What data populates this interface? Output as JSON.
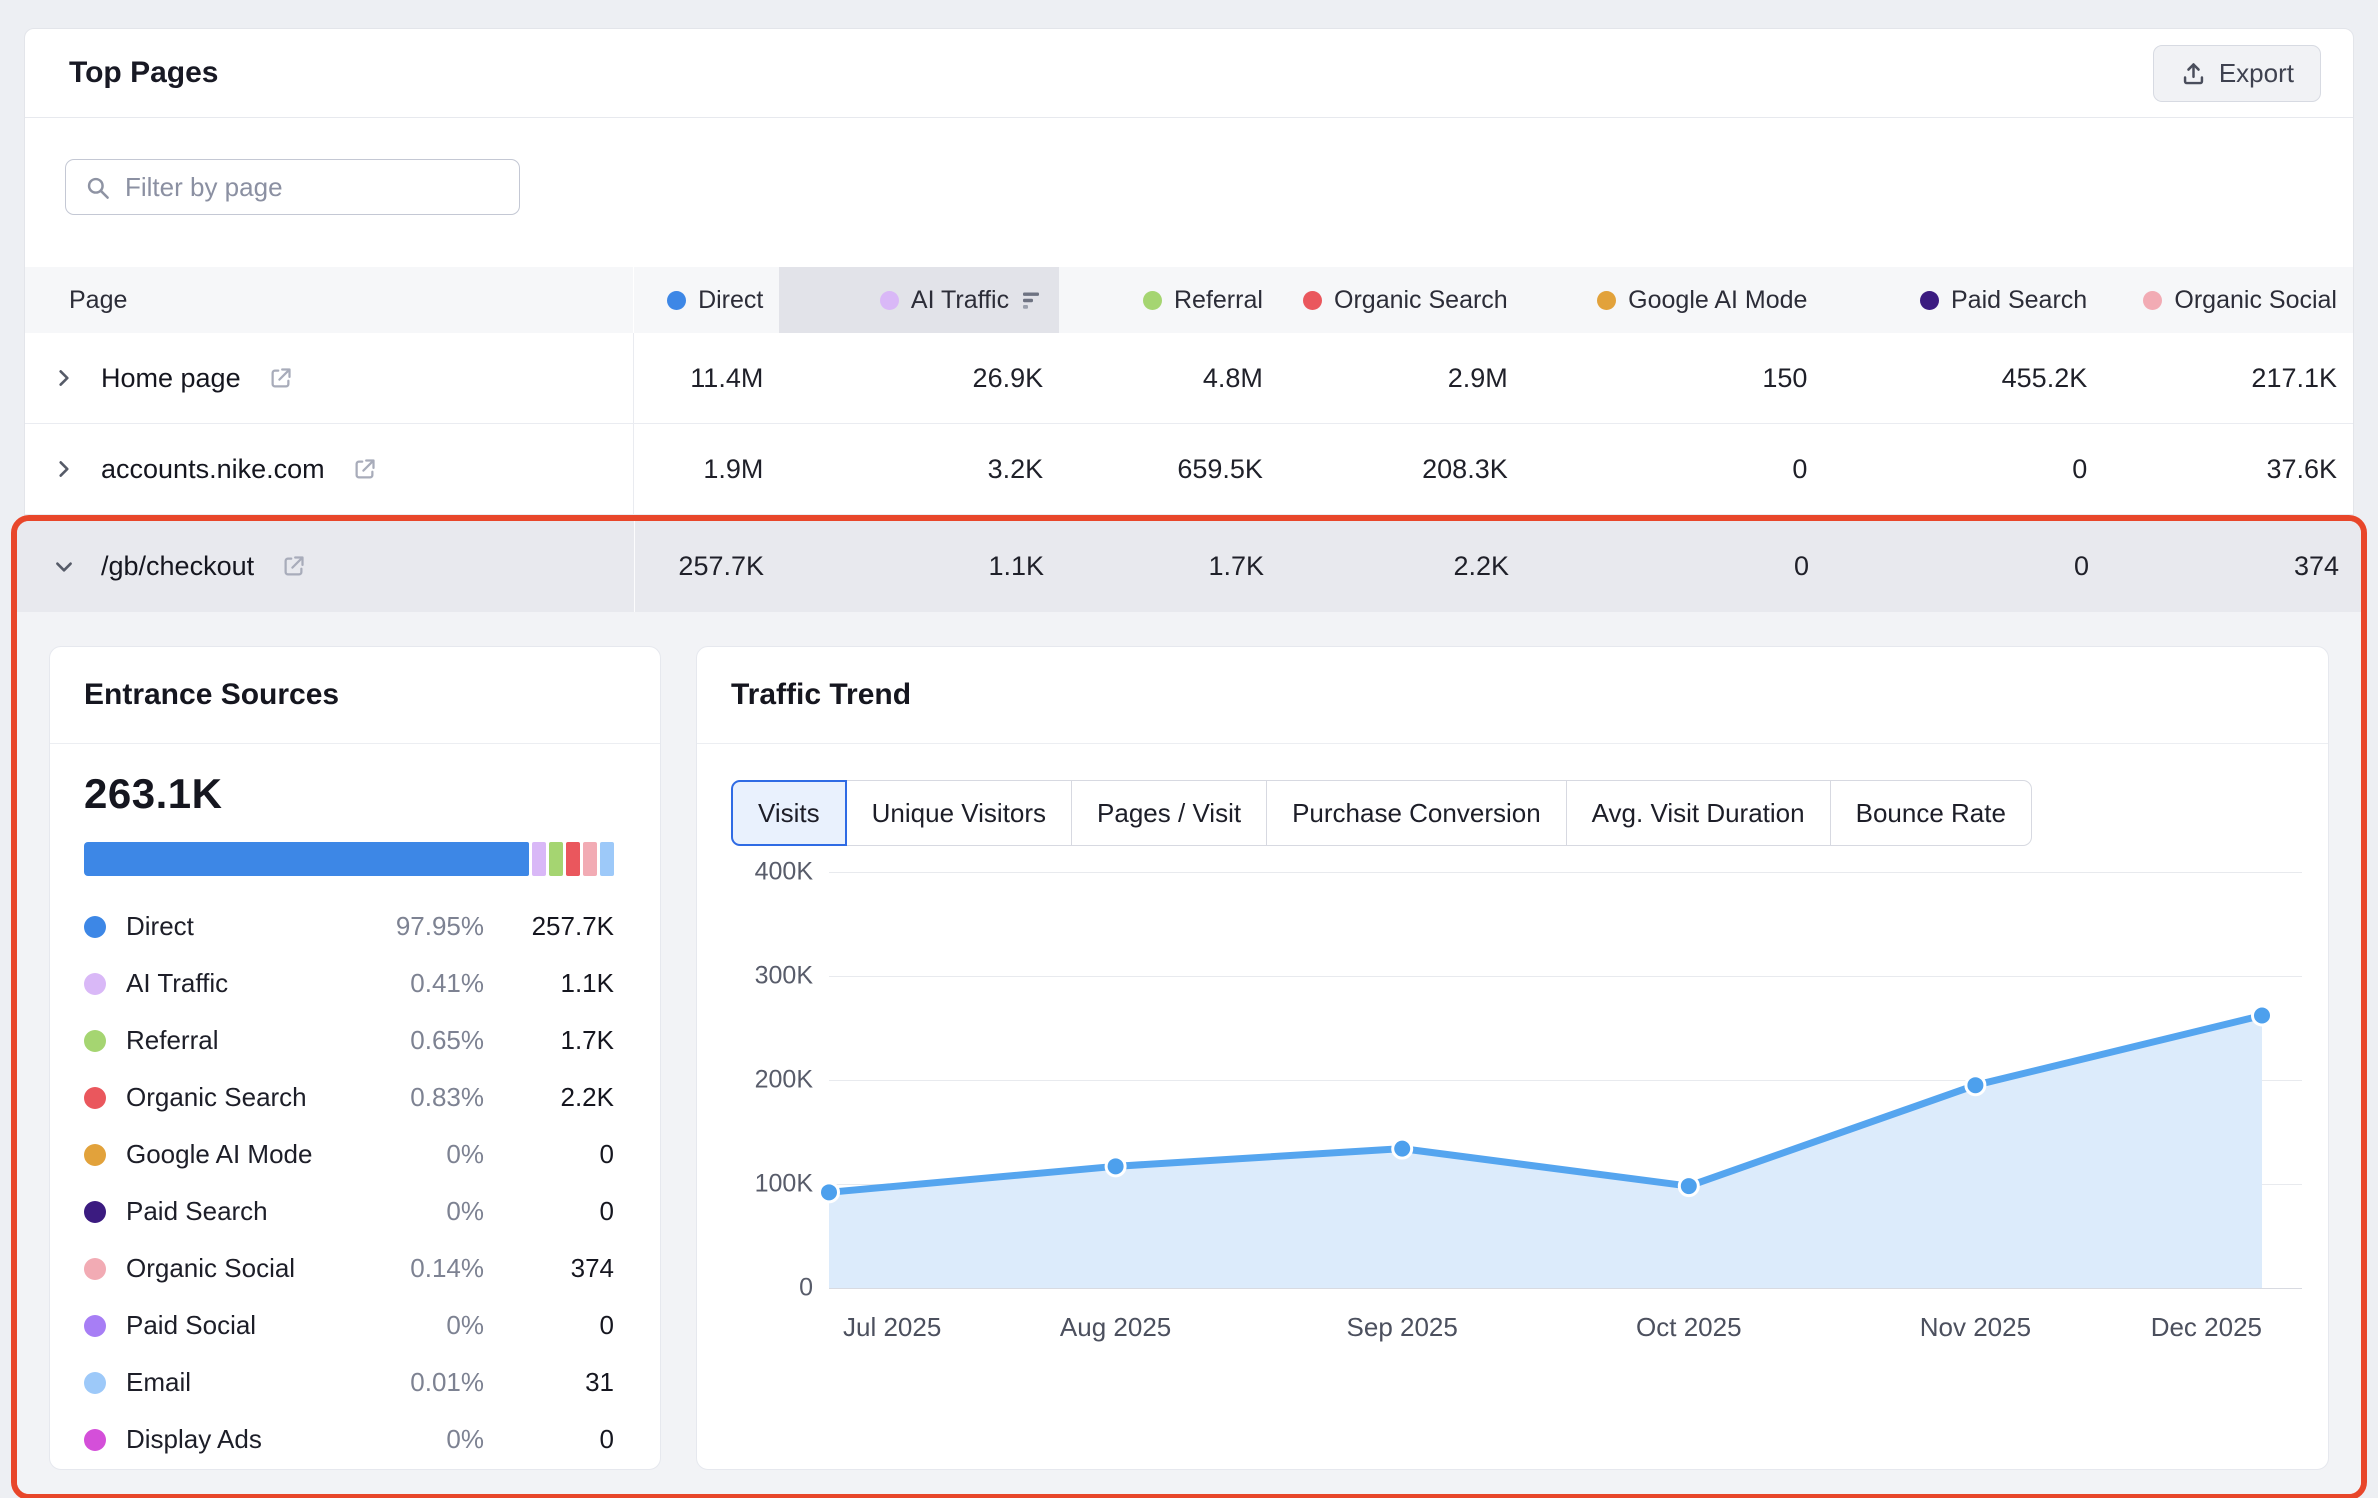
{
  "header": {
    "title": "Top Pages",
    "export_label": "Export"
  },
  "filter": {
    "placeholder": "Filter by page"
  },
  "table": {
    "page_column_label": "Page",
    "columns": [
      {
        "label": "Direct",
        "color": "#3d87e6",
        "sorted": false
      },
      {
        "label": "AI Traffic",
        "color": "#d9b8f7",
        "sorted": true
      },
      {
        "label": "Referral",
        "color": "#a5d571",
        "sorted": false
      },
      {
        "label": "Organic Search",
        "color": "#ea575d",
        "sorted": false
      },
      {
        "label": "Google AI Mode",
        "color": "#e2a23b",
        "sorted": false
      },
      {
        "label": "Paid Search",
        "color": "#3b1b80",
        "sorted": false
      },
      {
        "label": "Organic Social",
        "color": "#f2abb4",
        "sorted": false
      }
    ],
    "rows": [
      {
        "page": "Home page",
        "expanded": false,
        "values": [
          "11.4M",
          "26.9K",
          "4.8M",
          "2.9M",
          "150",
          "455.2K",
          "217.1K"
        ]
      },
      {
        "page": "accounts.nike.com",
        "expanded": false,
        "values": [
          "1.9M",
          "3.2K",
          "659.5K",
          "208.3K",
          "0",
          "0",
          "37.6K"
        ]
      },
      {
        "page": "/gb/checkout",
        "expanded": true,
        "values": [
          "257.7K",
          "1.1K",
          "1.7K",
          "2.2K",
          "0",
          "0",
          "374"
        ]
      }
    ]
  },
  "entrance_sources": {
    "title": "Entrance Sources",
    "total": "263.1K",
    "bar_segments": [
      {
        "label": "Direct",
        "color": "#3d87e6"
      },
      {
        "label": "AI Traffic",
        "color": "#d9b8f7"
      },
      {
        "label": "Referral",
        "color": "#a5d571"
      },
      {
        "label": "Organic Search",
        "color": "#ea575d"
      },
      {
        "label": "Organic Social",
        "color": "#f2abb4"
      },
      {
        "label": "Email",
        "color": "#9dc9f9"
      }
    ],
    "items": [
      {
        "label": "Direct",
        "percent": "97.95%",
        "value": "257.7K",
        "color": "#3d87e6"
      },
      {
        "label": "AI Traffic",
        "percent": "0.41%",
        "value": "1.1K",
        "color": "#d9b8f7"
      },
      {
        "label": "Referral",
        "percent": "0.65%",
        "value": "1.7K",
        "color": "#a5d571"
      },
      {
        "label": "Organic Search",
        "percent": "0.83%",
        "value": "2.2K",
        "color": "#ea575d"
      },
      {
        "label": "Google AI Mode",
        "percent": "0%",
        "value": "0",
        "color": "#e2a23b"
      },
      {
        "label": "Paid Search",
        "percent": "0%",
        "value": "0",
        "color": "#3b1b80"
      },
      {
        "label": "Organic Social",
        "percent": "0.14%",
        "value": "374",
        "color": "#f2abb4"
      },
      {
        "label": "Paid Social",
        "percent": "0%",
        "value": "0",
        "color": "#a77ef5"
      },
      {
        "label": "Email",
        "percent": "0.01%",
        "value": "31",
        "color": "#9dc9f9"
      },
      {
        "label": "Display Ads",
        "percent": "0%",
        "value": "0",
        "color": "#d44fd9"
      }
    ]
  },
  "traffic_trend": {
    "title": "Traffic Trend",
    "tabs": [
      {
        "label": "Visits",
        "selected": true
      },
      {
        "label": "Unique Visitors",
        "selected": false
      },
      {
        "label": "Pages / Visit",
        "selected": false
      },
      {
        "label": "Purchase Conversion",
        "selected": false
      },
      {
        "label": "Avg. Visit Duration",
        "selected": false
      },
      {
        "label": "Bounce Rate",
        "selected": false
      }
    ]
  },
  "chart_data": {
    "type": "area",
    "title": "Traffic Trend — Visits",
    "x": [
      "Jul 2025",
      "Aug 2025",
      "Sep 2025",
      "Oct 2025",
      "Nov 2025",
      "Dec 2025"
    ],
    "series": [
      {
        "name": "Visits",
        "values": [
          92000,
          117000,
          134000,
          98000,
          195000,
          262000
        ]
      }
    ],
    "xlabel": "",
    "ylabel": "",
    "ylim": [
      0,
      400000
    ],
    "yticks": [
      "0",
      "100K",
      "200K",
      "300K",
      "400K"
    ],
    "grid": true,
    "legend_position": "none",
    "line_color": "#55a5ef",
    "point_color": "#4da0ed",
    "fill_color": "#dcebfb"
  }
}
